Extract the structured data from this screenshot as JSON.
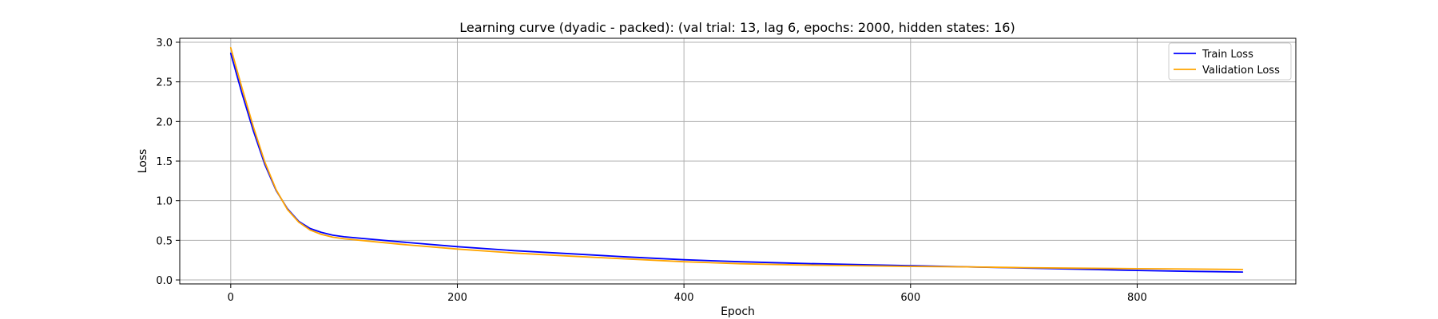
{
  "chart_data": {
    "type": "line",
    "title": "Learning curve (dyadic - packed): (val trial: 13, lag 6, epochs: 2000, hidden states: 16)",
    "xlabel": "Epoch",
    "ylabel": "Loss",
    "xlim": [
      -45,
      940
    ],
    "ylim": [
      -0.05,
      3.05
    ],
    "xticks": [
      0,
      200,
      400,
      600,
      800
    ],
    "yticks": [
      0.0,
      0.5,
      1.0,
      1.5,
      2.0,
      2.5,
      3.0
    ],
    "xtick_labels": [
      "0",
      "200",
      "400",
      "600",
      "800"
    ],
    "ytick_labels": [
      "0.0",
      "0.5",
      "1.0",
      "1.5",
      "2.0",
      "2.5",
      "3.0"
    ],
    "grid": true,
    "legend_position": "top-right",
    "series": [
      {
        "name": "Train Loss",
        "color": "#0000ff",
        "x": [
          0,
          10,
          20,
          30,
          40,
          50,
          60,
          70,
          80,
          90,
          100,
          150,
          200,
          250,
          300,
          350,
          400,
          450,
          500,
          550,
          600,
          650,
          700,
          750,
          800,
          850,
          893
        ],
        "y": [
          2.86,
          2.35,
          1.88,
          1.46,
          1.13,
          0.9,
          0.74,
          0.65,
          0.6,
          0.565,
          0.545,
          0.48,
          0.42,
          0.37,
          0.33,
          0.29,
          0.255,
          0.23,
          0.21,
          0.195,
          0.18,
          0.165,
          0.15,
          0.135,
          0.12,
          0.108,
          0.1
        ]
      },
      {
        "name": "Validation Loss",
        "color": "#ffa500",
        "x": [
          0,
          10,
          20,
          30,
          40,
          50,
          60,
          70,
          80,
          90,
          100,
          150,
          200,
          250,
          300,
          350,
          400,
          450,
          500,
          550,
          600,
          650,
          700,
          750,
          800,
          850,
          893
        ],
        "y": [
          2.93,
          2.42,
          1.93,
          1.49,
          1.14,
          0.89,
          0.73,
          0.63,
          0.575,
          0.54,
          0.52,
          0.45,
          0.39,
          0.34,
          0.3,
          0.265,
          0.23,
          0.205,
          0.19,
          0.18,
          0.17,
          0.165,
          0.155,
          0.148,
          0.142,
          0.137,
          0.132
        ]
      }
    ]
  }
}
